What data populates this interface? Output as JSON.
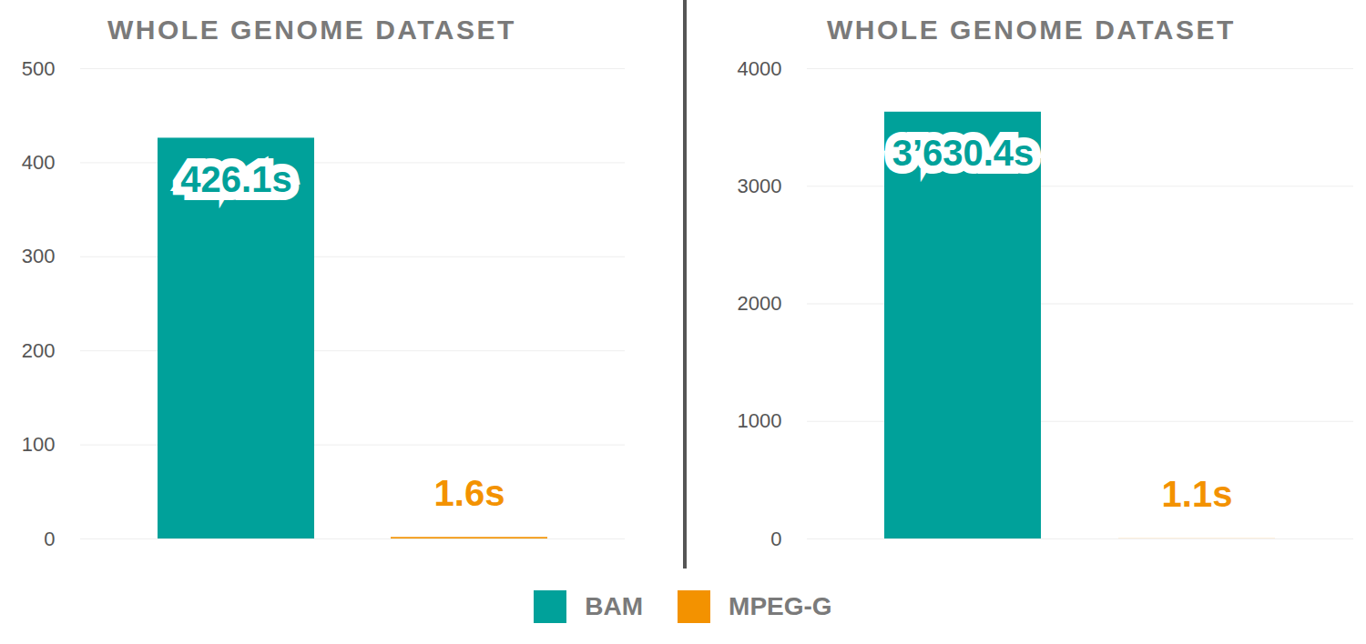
{
  "chart_data": [
    {
      "type": "bar",
      "title": "WHOLE GENOME DATASET",
      "categories": [
        "BAM",
        "MPEG-G"
      ],
      "values": [
        426.1,
        1.6
      ],
      "value_labels": [
        "426.1s",
        "1.6s"
      ],
      "colors": [
        "#00a19a",
        "#f39200"
      ],
      "ylim": [
        0,
        500
      ],
      "yticks": [
        0,
        100,
        200,
        300,
        400,
        500
      ],
      "grid": true,
      "data_labels": true,
      "tick_labels": "y",
      "legend": "bottom"
    },
    {
      "type": "bar",
      "title": "WHOLE GENOME DATASET",
      "categories": [
        "BAM",
        "MPEG-G"
      ],
      "values": [
        3630.4,
        1.1
      ],
      "value_labels": [
        "3’630.4s",
        "1.1s"
      ],
      "colors": [
        "#00a19a",
        "#f39200"
      ],
      "ylim": [
        0,
        4000
      ],
      "yticks": [
        0,
        1000,
        2000,
        3000,
        4000
      ],
      "grid": true,
      "data_labels": true,
      "tick_labels": "y",
      "legend": "bottom"
    }
  ]
}
